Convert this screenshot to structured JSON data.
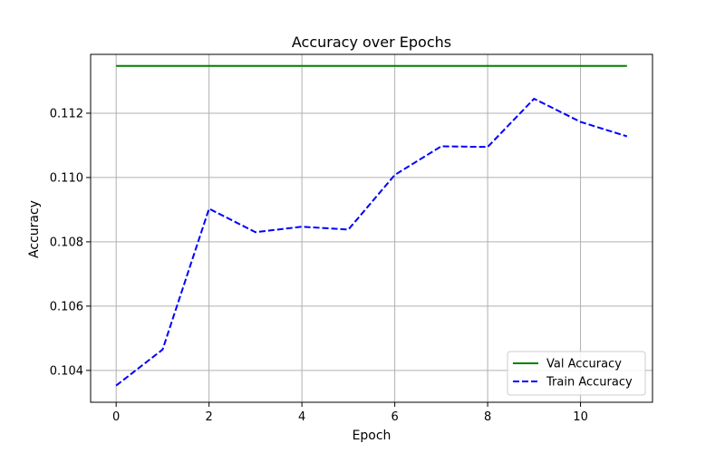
{
  "chart_data": {
    "type": "line",
    "title": "Accuracy over Epochs",
    "xlabel": "Epoch",
    "ylabel": "Accuracy",
    "xlim": [
      -0.55,
      11.55
    ],
    "ylim": [
      0.10301,
      0.11383
    ],
    "xticks": [
      0,
      2,
      4,
      6,
      8,
      10
    ],
    "xtick_labels": [
      "0",
      "2",
      "4",
      "6",
      "8",
      "10"
    ],
    "yticks": [
      0.104,
      0.106,
      0.108,
      0.11,
      0.112
    ],
    "ytick_labels": [
      "0.104",
      "0.106",
      "0.108",
      "0.110",
      "0.112"
    ],
    "grid": true,
    "legend_position": "lower-right",
    "series": [
      {
        "name": "Val Accuracy",
        "color": "#008000",
        "style": "solid",
        "x": [
          0,
          1,
          2,
          3,
          4,
          5,
          6,
          7,
          8,
          9,
          10,
          11
        ],
        "values": [
          0.11347,
          0.11347,
          0.11347,
          0.11347,
          0.11347,
          0.11347,
          0.11347,
          0.11347,
          0.11347,
          0.11347,
          0.11347,
          0.11347
        ]
      },
      {
        "name": "Train Accuracy",
        "color": "#0000ff",
        "style": "dashed",
        "x": [
          0,
          1,
          2,
          3,
          4,
          5,
          6,
          7,
          8,
          9,
          10,
          11
        ],
        "values": [
          0.10353,
          0.10465,
          0.10903,
          0.1083,
          0.10847,
          0.10838,
          0.11008,
          0.11097,
          0.11095,
          0.11245,
          0.11173,
          0.11128
        ]
      }
    ]
  }
}
